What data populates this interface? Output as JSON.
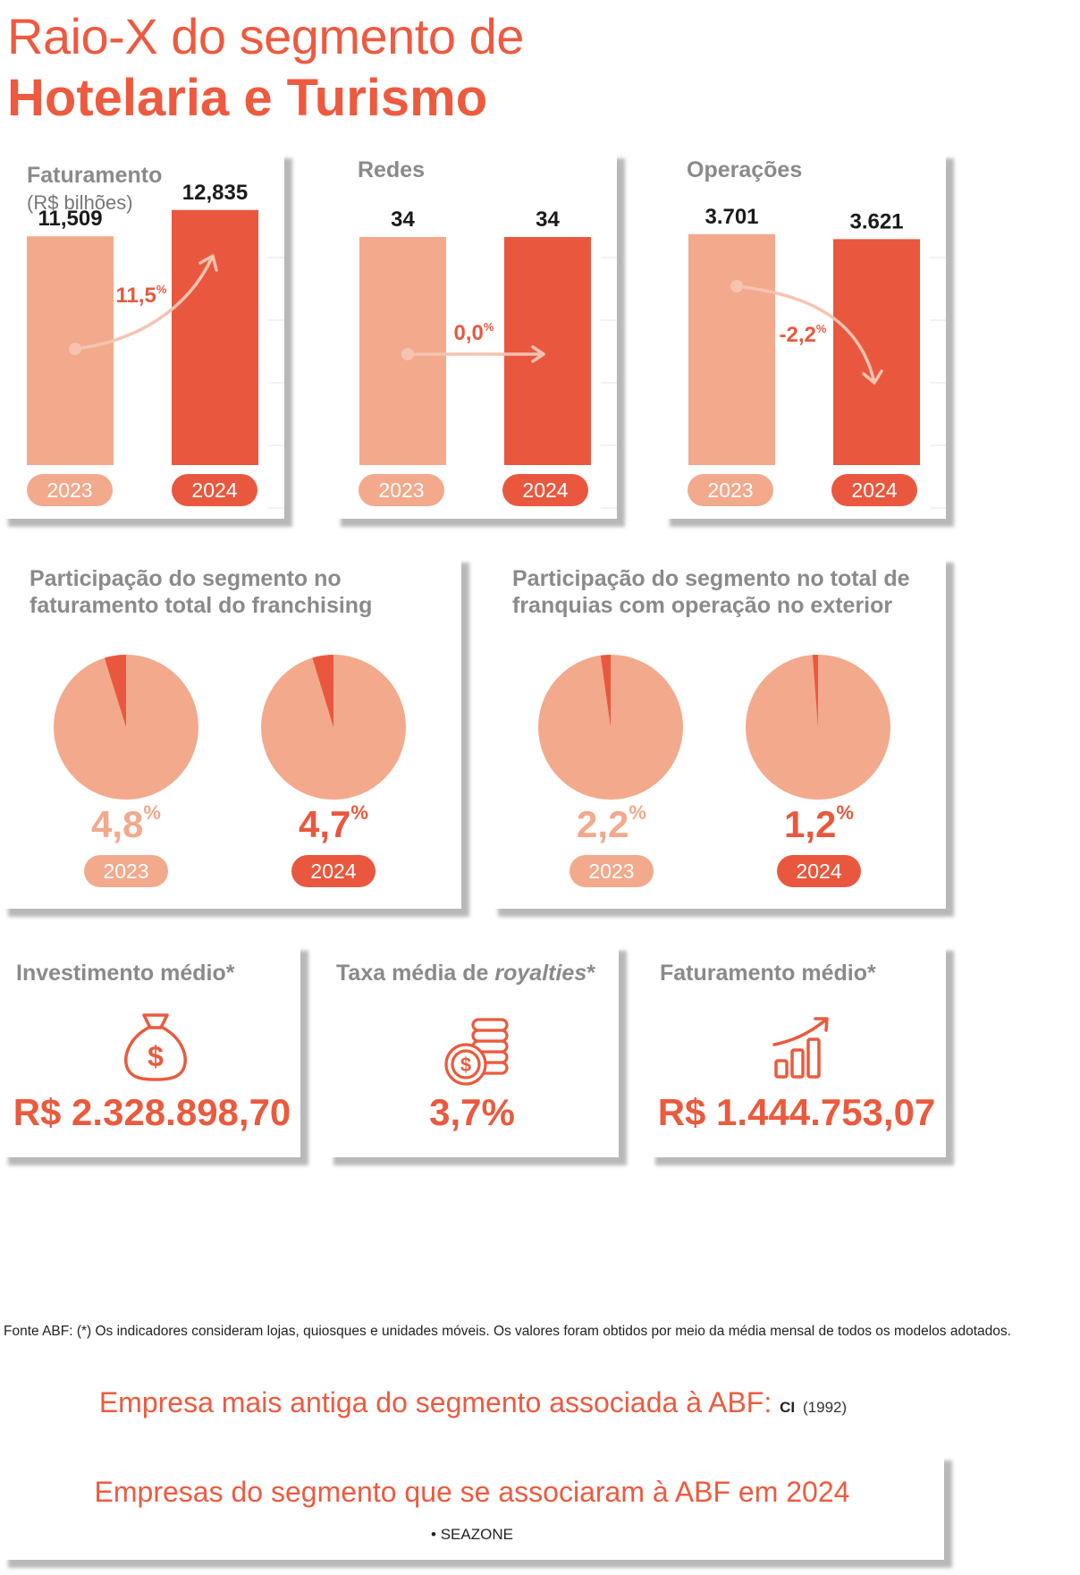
{
  "header": {
    "title_line1": "Raio-X do segmento de",
    "title_line2": "Hotelaria e Turismo"
  },
  "colors": {
    "accent": "#ee5a3f",
    "bar_2023": "#f3a98c",
    "bar_2024": "#e9583e",
    "pie_base": "#f3a98c",
    "pie_slice": "#e9583e"
  },
  "chart_data": [
    {
      "type": "bar",
      "title": "Faturamento",
      "subtitle": "(R$ bilhões)",
      "categories": [
        "2023",
        "2024"
      ],
      "values": [
        11.509,
        12.835
      ],
      "value_labels": [
        "11,509",
        "12,835"
      ],
      "change_label": "11,5",
      "change_unit": "%",
      "trend": "up",
      "ylim": [
        0,
        13.5
      ]
    },
    {
      "type": "bar",
      "title": "Redes",
      "categories": [
        "2023",
        "2024"
      ],
      "values": [
        34,
        34
      ],
      "value_labels": [
        "34",
        "34"
      ],
      "change_label": "0,0",
      "change_unit": "%",
      "trend": "flat",
      "ylim": [
        0,
        40
      ]
    },
    {
      "type": "bar",
      "title": "Operações",
      "categories": [
        "2023",
        "2024"
      ],
      "values": [
        3701,
        3621
      ],
      "value_labels": [
        "3.701",
        "3.621"
      ],
      "change_label": "-2,2",
      "change_unit": "%",
      "trend": "down",
      "ylim": [
        0,
        4300
      ]
    },
    {
      "type": "pie",
      "title": "Participação do segmento no faturamento total do franchising",
      "categories": [
        "2023",
        "2024"
      ],
      "values": [
        4.8,
        4.7
      ],
      "value_labels": [
        "4,8",
        "4,7"
      ],
      "unit": "%"
    },
    {
      "type": "pie",
      "title": "Participação do segmento no total de franquias com operação no exterior",
      "categories": [
        "2023",
        "2024"
      ],
      "values": [
        2.2,
        1.2
      ],
      "value_labels": [
        "2,2",
        "1,2"
      ],
      "unit": "%"
    }
  ],
  "kpis": [
    {
      "title": "Investimento médio*",
      "icon": "money-bag-icon",
      "value": "R$ 2.328.898,70"
    },
    {
      "title_prefix": "Taxa média de ",
      "title_italic": "royalties",
      "title_suffix": "*",
      "icon": "coins-icon",
      "value": "3,7%"
    },
    {
      "title": "Faturamento médio*",
      "icon": "growth-chart-icon",
      "value": "R$ 1.444.753,07"
    }
  ],
  "footnote": "Fonte ABF: (*) Os indicadores consideram lojas, quiosques e unidades móveis. Os valores foram obtidos por meio da média mensal de todos os modelos adotados.",
  "oldest": {
    "label": "Empresa mais antiga do segmento associada à ABF:",
    "company": "CI",
    "year": "(1992)"
  },
  "new_members": {
    "title": "Empresas do segmento que se associaram à ABF em 2024",
    "items": [
      "• SEAZONE"
    ]
  }
}
